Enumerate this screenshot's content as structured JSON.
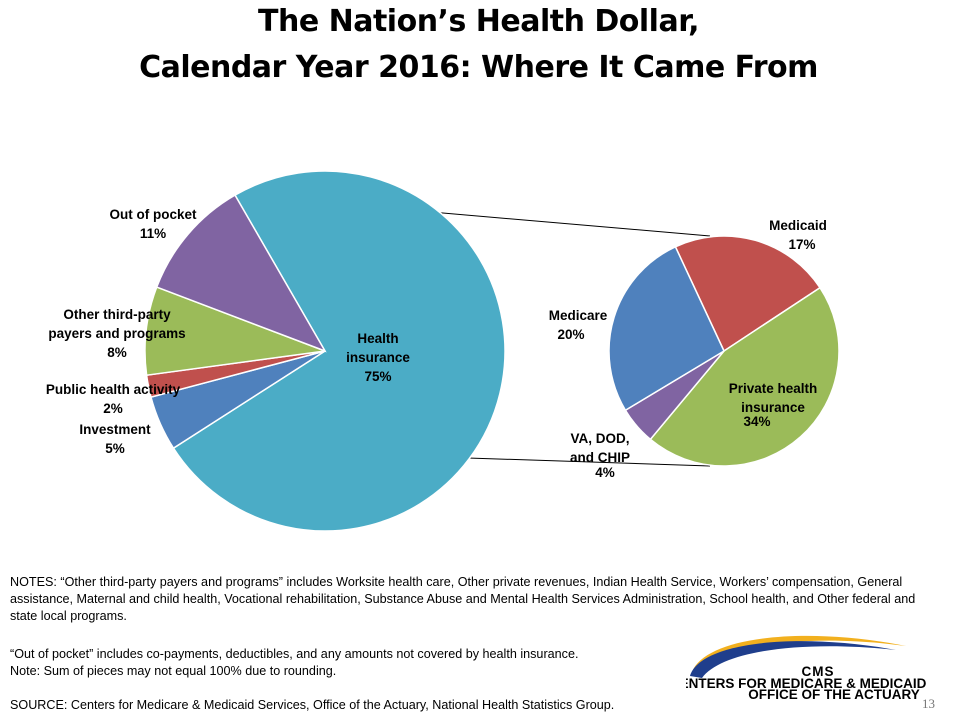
{
  "title": {
    "line1": "The Nation’s Health Dollar,",
    "line2": "Calendar Year 2016:  Where It Came From"
  },
  "chart_data": [
    {
      "type": "pie",
      "slices": [
        {
          "label_lines": [
            "Health",
            "insurance"
          ],
          "value_label": "75%",
          "value": 75,
          "color": "#4BACC6"
        },
        {
          "label_lines": [
            "Investment"
          ],
          "value_label": "5%",
          "value": 5,
          "color": "#4F81BD"
        },
        {
          "label_lines": [
            "Public health activity"
          ],
          "value_label": "2%",
          "value": 2,
          "color": "#C0504D"
        },
        {
          "label_lines": [
            "Other third-party",
            "payers and programs"
          ],
          "value_label": "8%",
          "value": 8,
          "color": "#9BBB59"
        },
        {
          "label_lines": [
            "Out of pocket"
          ],
          "value_label": "11%",
          "value": 11,
          "color": "#8064A2"
        }
      ]
    },
    {
      "type": "pie",
      "breakdown_of": "Health insurance",
      "slices": [
        {
          "label_lines": [
            "Medicaid"
          ],
          "value_label": "17%",
          "value": 17,
          "color": "#C0504D"
        },
        {
          "label_lines": [
            "Private health",
            "insurance"
          ],
          "value_label": "34%",
          "value": 34,
          "color": "#9BBB59"
        },
        {
          "label_lines": [
            "VA, DOD,",
            "and CHIP"
          ],
          "value_label": "4%",
          "value": 4,
          "color": "#8064A2"
        },
        {
          "label_lines": [
            "Medicare"
          ],
          "value_label": "20%",
          "value": 20,
          "color": "#4F81BD"
        }
      ]
    }
  ],
  "notes": {
    "note1": "NOTES: “Other third-party payers and programs” includes Worksite health care, Other private revenues, Indian Health Service, Workers’ compensation, General assistance, Maternal and child health, Vocational rehabilitation, Substance Abuse and Mental Health Services Administration, School health, and Other federal and state local programs.",
    "note2": "“Out of pocket” includes co-payments, deductibles, and any amounts not covered by health insurance.",
    "note3": "Note: Sum of pieces may not equal 100% due to rounding.",
    "source": "SOURCE: Centers for Medicare & Medicaid Services, Office of the Actuary, National Health Statistics Group."
  },
  "logo": {
    "text": "CMS",
    "subtitle1": "CENTERS FOR MEDICARE & MEDICAID SERVICES",
    "subtitle2": "OFFICE OF THE ACTUARY",
    "color": "#1F3E8C",
    "accent": "#F2B01E"
  },
  "page_number": "13"
}
